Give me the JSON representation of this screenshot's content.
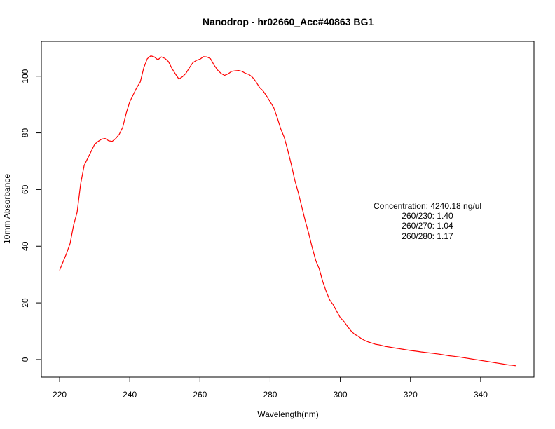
{
  "chart_data": {
    "type": "line",
    "title": "Nanodrop - hr02660_Acc#40863 BG1",
    "xlabel": "Wavelength(nm)",
    "ylabel": "10mm Absorbance",
    "xlim": [
      214.8,
      355.2
    ],
    "ylim": [
      -6.2,
      112.3
    ],
    "x_ticks": [
      220,
      240,
      260,
      280,
      300,
      320,
      340
    ],
    "x_tick_labels": [
      "220",
      "240",
      "260",
      "280",
      "300",
      "320",
      "340"
    ],
    "y_ticks": [
      0,
      20,
      40,
      60,
      80,
      100
    ],
    "y_tick_labels": [
      "0",
      "20",
      "40",
      "60",
      "80",
      "100"
    ],
    "grid": false,
    "legend": "none",
    "series": [
      {
        "color": "#ff0000",
        "x": [
          220,
          221,
          222,
          223,
          224,
          225,
          226,
          227,
          228,
          229,
          230,
          231,
          232,
          233,
          234,
          235,
          236,
          237,
          238,
          239,
          240,
          241,
          242,
          243,
          244,
          245,
          246,
          247,
          248,
          249,
          250,
          251,
          252,
          253,
          254,
          255,
          256,
          257,
          258,
          259,
          260,
          261,
          262,
          263,
          264,
          265,
          266,
          267,
          268,
          269,
          270,
          271,
          272,
          273,
          274,
          275,
          276,
          277,
          278,
          279,
          280,
          281,
          282,
          283,
          284,
          285,
          286,
          287,
          288,
          289,
          290,
          291,
          292,
          293,
          294,
          295,
          296,
          297,
          298,
          299,
          300,
          301,
          302,
          303,
          304,
          305,
          306,
          307,
          308,
          309,
          310,
          311,
          312,
          313,
          314,
          315,
          316,
          317,
          318,
          319,
          320,
          321,
          322,
          323,
          324,
          325,
          326,
          327,
          328,
          329,
          330,
          331,
          332,
          333,
          334,
          335,
          336,
          337,
          338,
          339,
          340,
          341,
          342,
          343,
          344,
          345,
          346,
          347,
          348,
          349,
          350
        ],
        "values": [
          31.5,
          34.5,
          37.5,
          41,
          47.5,
          52,
          62,
          68.5,
          71,
          73.5,
          76,
          77,
          77.8,
          78,
          77.2,
          77,
          78,
          79.5,
          82,
          87,
          91,
          93.5,
          96,
          98,
          103,
          106.2,
          107.2,
          106.8,
          105.8,
          106.8,
          106.3,
          105.2,
          102.8,
          100.8,
          99,
          99.8,
          101,
          103,
          104.8,
          105.6,
          106,
          106.9,
          106.8,
          106.2,
          104,
          102.2,
          101,
          100.3,
          100.8,
          101.7,
          101.9,
          102,
          101.7,
          101,
          100.6,
          99.6,
          98,
          96,
          94.8,
          93,
          91,
          89,
          85.5,
          81.5,
          78.5,
          74,
          69,
          63.5,
          59,
          54,
          49,
          44.5,
          39.5,
          35,
          32,
          27.5,
          24,
          21,
          19.3,
          17,
          14.8,
          13.5,
          11.8,
          10.2,
          9,
          8.3,
          7.4,
          6.7,
          6.2,
          5.8,
          5.4,
          5.2,
          4.9,
          4.6,
          4.4,
          4.2,
          4,
          3.8,
          3.6,
          3.4,
          3.2,
          3.05,
          2.9,
          2.7,
          2.55,
          2.4,
          2.25,
          2.1,
          1.95,
          1.75,
          1.55,
          1.35,
          1.2,
          1.05,
          0.9,
          0.7,
          0.5,
          0.3,
          0.1,
          -0.1,
          -0.3,
          -0.5,
          -0.7,
          -0.9,
          -1.1,
          -1.3,
          -1.5,
          -1.7,
          -1.9,
          -2.0,
          -2.2
        ]
      }
    ],
    "annotations": [
      "Concentration: 4240.18 ng/ul",
      "260/230: 1.40",
      "260/270: 1.04",
      "260/280: 1.17"
    ]
  }
}
